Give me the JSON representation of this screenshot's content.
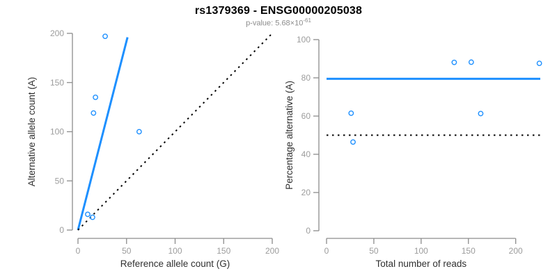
{
  "header": {
    "title": "rs1379369 - ENSG00000205038",
    "p_value_prefix": "p-value: 5.68×10",
    "p_value_exponent": "-61"
  },
  "colors": {
    "accent_blue": "#1E90FF",
    "axis_line": "#8C8C8C",
    "tick_label": "#9C9C9C",
    "axis_title": "#303030",
    "dotted_black": "#000000",
    "background": "#FFFFFF"
  },
  "chart_data": [
    {
      "id": "allele-count-scatter",
      "type": "scatter",
      "title": "",
      "xlabel": "Reference allele count (G)",
      "ylabel": "Alternative allele count (A)",
      "xlim": [
        0,
        200
      ],
      "ylim": [
        0,
        200
      ],
      "xticks": [
        0,
        50,
        100,
        150,
        200
      ],
      "yticks": [
        0,
        50,
        100,
        150,
        200
      ],
      "grid": false,
      "legend": null,
      "points": [
        [
          10,
          16
        ],
        [
          15,
          13
        ],
        [
          16,
          119
        ],
        [
          18,
          135
        ],
        [
          28,
          197
        ],
        [
          63,
          100
        ]
      ],
      "lines": [
        {
          "name": "regression-line",
          "style": "solid",
          "color_key": "accent_blue",
          "from": [
            0,
            0
          ],
          "to": [
            51,
            196
          ]
        },
        {
          "name": "identity-line",
          "style": "dotted",
          "color_key": "dotted_black",
          "from": [
            0,
            0
          ],
          "to": [
            200,
            200
          ]
        }
      ]
    },
    {
      "id": "percentage-vs-reads-scatter",
      "type": "scatter",
      "title": "",
      "xlabel": "Total number of reads",
      "ylabel": "Percentage alternative (A)",
      "xlim": [
        0,
        226
      ],
      "ylim": [
        0,
        100
      ],
      "xticks": [
        0,
        50,
        100,
        150,
        200
      ],
      "yticks": [
        0,
        20,
        40,
        60,
        80,
        100
      ],
      "grid": false,
      "legend": null,
      "points": [
        [
          26,
          61.5
        ],
        [
          28,
          46.4
        ],
        [
          135,
          88.1
        ],
        [
          153,
          88.2
        ],
        [
          163,
          61.3
        ],
        [
          225,
          87.6
        ]
      ],
      "lines": [
        {
          "name": "mean-percentage-line",
          "style": "solid",
          "color_key": "accent_blue",
          "from": [
            0,
            79.5
          ],
          "to": [
            226,
            79.5
          ]
        },
        {
          "name": "fifty-percent-line",
          "style": "dotted",
          "color_key": "dotted_black",
          "from": [
            0,
            50
          ],
          "to": [
            226,
            50
          ]
        }
      ]
    }
  ]
}
